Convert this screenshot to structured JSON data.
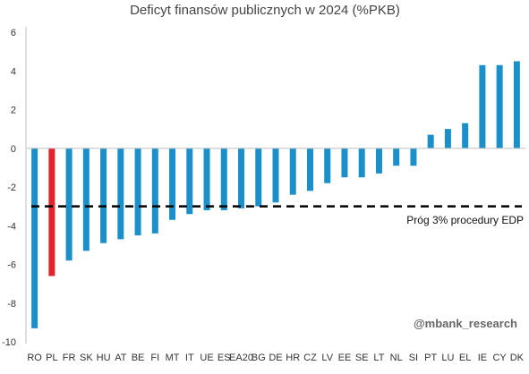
{
  "chart_data": {
    "type": "bar",
    "title": "Deficyt finansów publicznych w 2024 (%PKB)",
    "xlabel": "",
    "ylabel": "",
    "ylim": [
      -10,
      6
    ],
    "yticks": [
      6,
      4,
      2,
      0,
      -2,
      -4,
      -6,
      -8,
      -10
    ],
    "grid": false,
    "categories": [
      "RO",
      "PL",
      "FR",
      "SK",
      "HU",
      "AT",
      "BE",
      "FI",
      "MT",
      "IT",
      "UE",
      "ES",
      "EA20",
      "BG",
      "DE",
      "HR",
      "CZ",
      "LV",
      "EE",
      "SE",
      "LT",
      "NL",
      "SI",
      "PT",
      "LU",
      "EL",
      "IE",
      "CY",
      "DK"
    ],
    "values": [
      -9.3,
      -6.6,
      -5.8,
      -5.3,
      -4.9,
      -4.7,
      -4.5,
      -4.4,
      -3.7,
      -3.4,
      -3.2,
      -3.2,
      -3.1,
      -3.0,
      -2.8,
      -2.4,
      -2.2,
      -1.8,
      -1.5,
      -1.5,
      -1.3,
      -0.9,
      -0.9,
      0.7,
      1.0,
      1.3,
      4.3,
      4.3,
      4.5
    ],
    "highlight_category": "PL",
    "reference_line": {
      "value": -3,
      "label": "Próg 3% procedury EDP"
    },
    "watermark": "@mbank_research",
    "colors": {
      "bar": "#1a8fc9",
      "highlight": "#e0242b",
      "reference": "#000000",
      "axis": "#bfbfbf"
    }
  }
}
